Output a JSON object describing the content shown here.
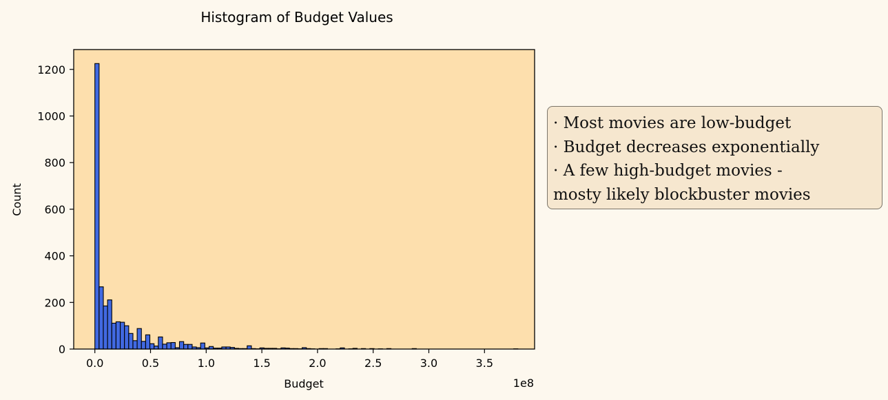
{
  "chart_data": {
    "type": "bar",
    "title": "Histogram of Budget Values",
    "xlabel": "Budget",
    "ylabel": "Count",
    "x_offset_label": "1e8",
    "xlim": [
      -0.19,
      3.95
    ],
    "ylim": [
      0,
      1285
    ],
    "x_ticks": [
      0,
      0.5,
      1.0,
      1.5,
      2.0,
      2.5,
      3.0,
      3.5
    ],
    "x_tick_labels": [
      "0.0",
      "0.5",
      "1.0",
      "1.5",
      "2.0",
      "2.5",
      "3.0",
      "3.5"
    ],
    "y_ticks": [
      0,
      200,
      400,
      600,
      800,
      1000,
      1200
    ],
    "y_tick_labels": [
      "0",
      "200",
      "400",
      "600",
      "800",
      "1000",
      "1200"
    ],
    "bin_range": [
      0,
      3.8
    ],
    "values": [
      1225,
      267,
      185,
      211,
      111,
      117,
      115,
      100,
      67,
      36,
      88,
      33,
      61,
      23,
      13,
      52,
      21,
      27,
      28,
      6,
      32,
      20,
      20,
      9,
      6,
      26,
      5,
      11,
      4,
      4,
      9,
      9,
      7,
      3,
      2,
      2,
      14,
      2,
      1,
      5,
      3,
      3,
      3,
      1,
      5,
      4,
      2,
      2,
      1,
      6,
      2,
      1,
      0,
      2,
      2,
      0,
      0,
      1,
      5,
      0,
      1,
      3,
      0,
      2,
      0,
      2,
      0,
      1,
      0,
      2,
      0,
      0,
      0,
      0,
      0,
      2,
      0,
      0,
      0,
      0,
      0,
      0,
      0,
      0,
      0,
      0,
      0,
      0,
      0,
      0,
      0,
      0,
      0,
      0,
      0,
      0,
      0,
      0,
      0,
      1
    ],
    "grid": false,
    "colors": {
      "bar_fill": "#4169e1",
      "bar_edge": "#000000",
      "plot_background": "#fddfad",
      "figure_background": "#fdf8ee"
    }
  },
  "annotation": {
    "lines": [
      "· Most movies are low-budget",
      "· Budget decreases exponentially",
      "· A few high-budget movies -",
      "mosty likely blockbuster movies"
    ]
  }
}
